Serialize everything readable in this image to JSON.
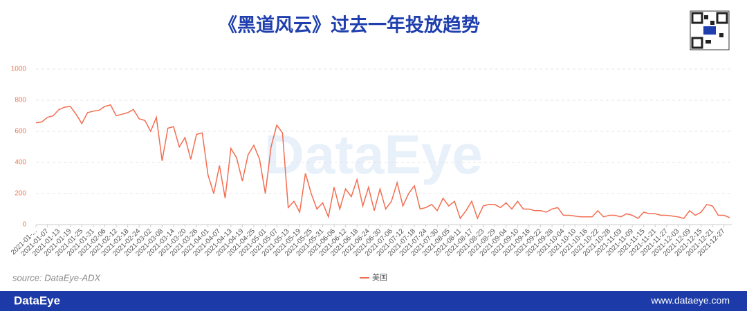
{
  "chart_data": {
    "type": "line",
    "title": "《黑道风云》过去一年投放趋势",
    "source": "source: DataEye-ADX",
    "watermark": "DataEye",
    "categories": [
      "2021-01-...",
      null,
      "2021-01-07",
      null,
      "2021-01-13",
      null,
      "2021-01-19",
      null,
      "2021-01-25",
      null,
      "2021-01-31",
      null,
      "2021-02-06",
      null,
      "2021-02-12",
      null,
      "2021-02-18",
      null,
      "2021-02-24",
      null,
      "2021-03-02",
      null,
      "2021-03-08",
      null,
      "2021-03-14",
      null,
      "2021-03-20",
      null,
      "2021-03-26",
      null,
      "2021-04-01",
      null,
      "2021-04-07",
      null,
      "2021-04-13",
      null,
      "2021-04-19",
      null,
      "2021-04-25",
      null,
      "2021-05-01",
      null,
      "2021-05-07",
      null,
      "2021-05-13",
      null,
      "2021-05-19",
      null,
      "2021-05-25",
      null,
      "2021-05-31",
      null,
      "2021-06-06",
      null,
      "2021-06-12",
      null,
      "2021-06-18",
      null,
      "2021-06-24",
      null,
      "2021-06-30",
      null,
      "2021-07-06",
      null,
      "2021-07-12",
      null,
      "2021-07-18",
      null,
      "2021-07-24",
      null,
      "2021-07-30",
      null,
      "2021-08-05",
      null,
      "2021-08-11",
      null,
      "2021-08-17",
      null,
      "2021-08-23",
      null,
      "2021-08-29",
      null,
      "2021-09-04",
      null,
      "2021-09-10",
      null,
      "2021-09-16",
      null,
      "2021-09-22",
      null,
      "2021-09-28",
      null,
      "2021-10-04",
      null,
      "2021-10-10",
      null,
      "2021-10-16",
      null,
      "2021-10-22",
      null,
      "2021-10-28",
      null,
      "2021-11-03",
      null,
      "2021-11-09",
      null,
      "2021-11-15",
      null,
      "2021-11-21",
      null,
      "2021-11-27",
      null,
      "2021-12-03",
      null,
      "2021-12-09",
      null,
      "2021-12-15",
      null,
      "2021-12-21",
      null,
      "2021-12-27",
      null
    ],
    "series": [
      {
        "name": "美国",
        "color": "#f26d50",
        "values": [
          655,
          660,
          690,
          700,
          740,
          755,
          760,
          710,
          650,
          720,
          730,
          735,
          760,
          770,
          700,
          710,
          720,
          740,
          680,
          670,
          600,
          690,
          410,
          620,
          630,
          500,
          560,
          420,
          580,
          590,
          320,
          200,
          380,
          170,
          490,
          430,
          280,
          450,
          510,
          420,
          200,
          500,
          640,
          590,
          110,
          150,
          80,
          330,
          200,
          100,
          140,
          50,
          240,
          100,
          230,
          180,
          290,
          120,
          240,
          90,
          230,
          100,
          150,
          270,
          120,
          200,
          250,
          100,
          110,
          130,
          90,
          170,
          120,
          150,
          40,
          90,
          150,
          40,
          120,
          130,
          130,
          110,
          140,
          100,
          150,
          100,
          100,
          90,
          90,
          80,
          100,
          110,
          60,
          60,
          55,
          50,
          50,
          50,
          90,
          50,
          60,
          60,
          50,
          70,
          60,
          40,
          80,
          70,
          70,
          60,
          60,
          55,
          50,
          40,
          90,
          60,
          80,
          130,
          120,
          60,
          60,
          45
        ]
      }
    ],
    "ylim": [
      0,
      1000
    ],
    "yticks": [
      0,
      200,
      400,
      600,
      800,
      1000
    ],
    "grid": true
  },
  "footer": {
    "brand": "DataEye",
    "url": "www.dataeye.com"
  }
}
